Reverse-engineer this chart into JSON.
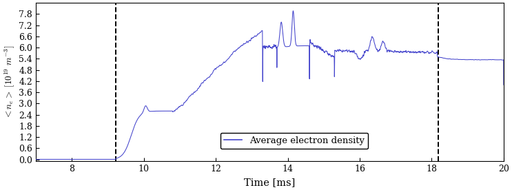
{
  "title": "",
  "xlabel": "Time [ms]",
  "ylabel": "$\\langle n_e \\rangle\\ [10^{19}\\ m^{-3}]$",
  "xlim": [
    7,
    20
  ],
  "ylim": [
    -0.1,
    8.4
  ],
  "yticks": [
    0.0,
    0.6,
    1.2,
    1.8,
    2.4,
    3.0,
    3.6,
    4.2,
    4.8,
    5.4,
    6.0,
    6.6,
    7.2,
    7.8
  ],
  "xticks": [
    8,
    10,
    12,
    14,
    16,
    18,
    20
  ],
  "line_color": "#4444cc",
  "vline1_x": 9.22,
  "vline2_x": 18.18,
  "vline_color": "black",
  "vline_style": "--",
  "legend_label": "Average electron density",
  "figsize": [
    7.43,
    2.76
  ],
  "dpi": 100
}
